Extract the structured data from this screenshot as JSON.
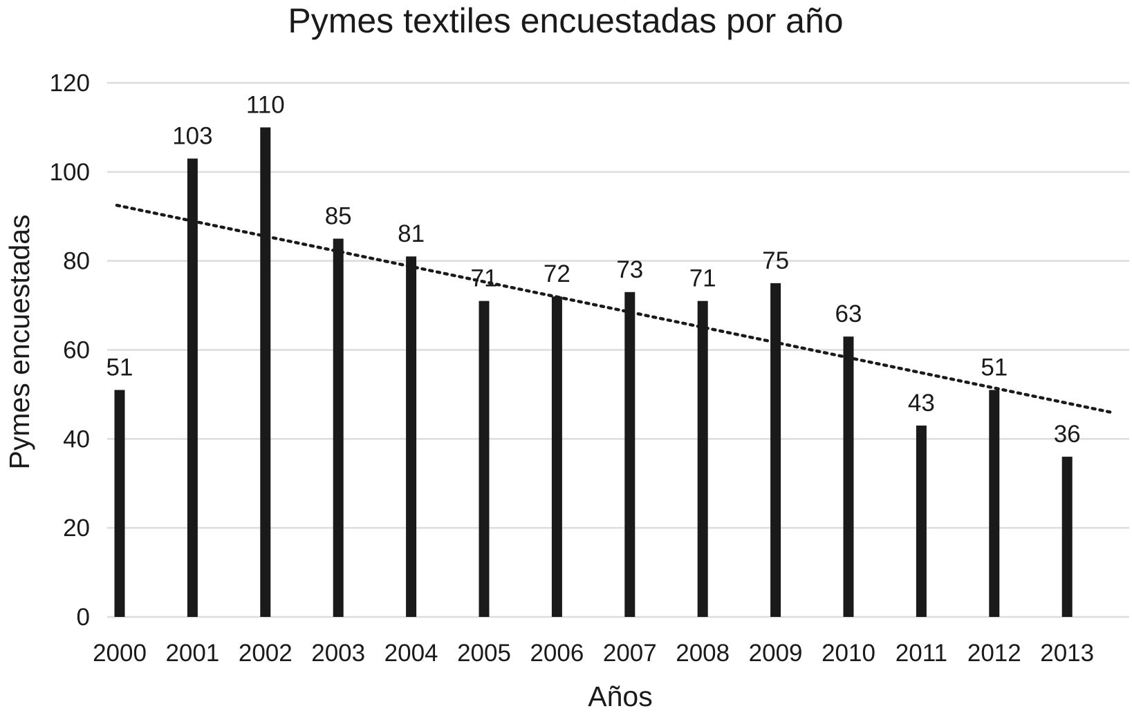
{
  "chart_data": {
    "type": "bar",
    "title": "Pymes textiles encuestadas por año",
    "xlabel": "Años",
    "ylabel": "Pymes encuestadas",
    "categories": [
      "2000",
      "2001",
      "2002",
      "2003",
      "2004",
      "2005",
      "2006",
      "2007",
      "2008",
      "2009",
      "2010",
      "2011",
      "2012",
      "2013"
    ],
    "values": [
      51,
      103,
      110,
      85,
      81,
      71,
      72,
      73,
      71,
      75,
      63,
      43,
      51,
      36
    ],
    "data_labels": [
      "51",
      "103",
      "110",
      "85",
      "81",
      "71",
      "72",
      "73",
      "71",
      "75",
      "63",
      "43",
      "51",
      "36"
    ],
    "ylim": [
      0,
      120
    ],
    "yticks": [
      0,
      20,
      40,
      60,
      80,
      100,
      120
    ],
    "ytick_labels": [
      "0",
      "20",
      "40",
      "60",
      "80",
      "100",
      "120"
    ],
    "grid": true,
    "legend": "none",
    "bar_color": "#1a1a1a",
    "trendline": {
      "type": "linear",
      "style": "dotted",
      "start_value": 92.5,
      "end_value": 46
    }
  }
}
